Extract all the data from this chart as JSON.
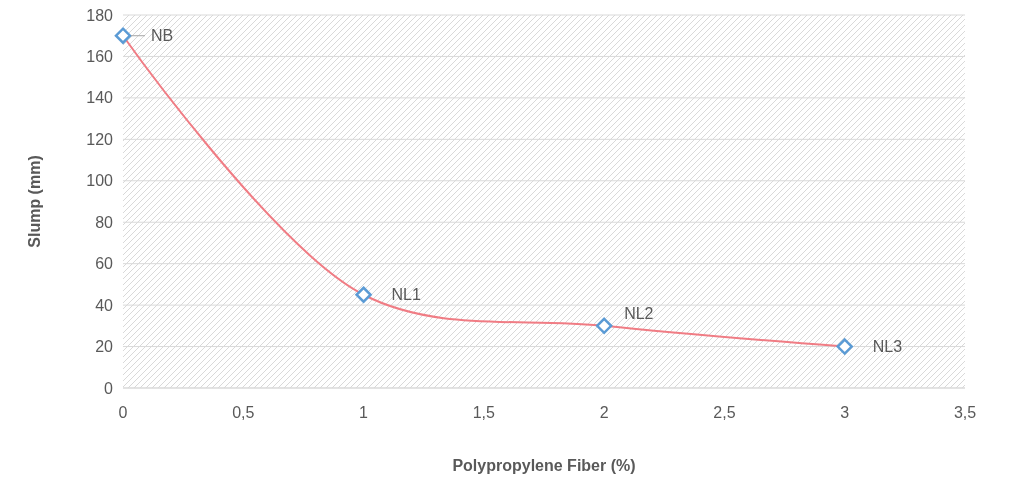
{
  "chart_data": {
    "type": "line",
    "xlabel": "Polypropylene Fiber (%)",
    "ylabel": "Slump (mm)",
    "x": [
      0,
      1,
      2,
      3
    ],
    "series": [
      {
        "color": "#f07c84",
        "values": [
          170,
          45,
          30,
          20
        ]
      }
    ],
    "xlim": [
      0,
      3.5
    ],
    "xticks": [
      {
        "value": 0,
        "label": "0"
      },
      {
        "value": 0.5,
        "label": "0,5"
      },
      {
        "value": 1,
        "label": "1"
      },
      {
        "value": 1.5,
        "label": "1,5"
      },
      {
        "value": 2,
        "label": "2"
      },
      {
        "value": 2.5,
        "label": "2,5"
      },
      {
        "value": 3,
        "label": "3"
      },
      {
        "value": 3.5,
        "label": "3,5"
      }
    ],
    "ylim": [
      0,
      180
    ],
    "yticks": [
      0,
      20,
      40,
      60,
      80,
      100,
      120,
      140,
      160,
      180
    ],
    "grid": "y",
    "marker": "diamond",
    "annotations": [
      {
        "text": "NB",
        "x": 0,
        "y": 170
      },
      {
        "text": "NL1",
        "x": 1,
        "y": 45
      },
      {
        "text": "NL2",
        "x": 2,
        "y": 30
      },
      {
        "text": "NL3",
        "x": 3,
        "y": 20
      }
    ]
  }
}
